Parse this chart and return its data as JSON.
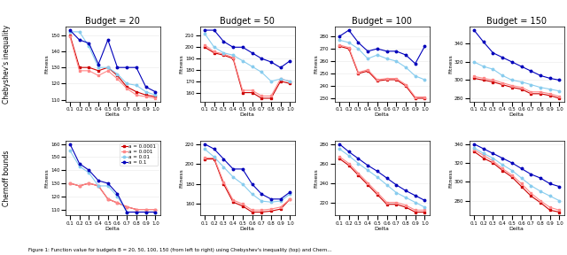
{
  "budgets": [
    20,
    50,
    100,
    150
  ],
  "delta": [
    0.1,
    0.2,
    0.3,
    0.4,
    0.5,
    0.6,
    0.7,
    0.8,
    0.9,
    1.0
  ],
  "alpha_labels": [
    "α = 0.0001",
    "α = 0.001",
    "α = 0.01",
    "α = 0.1"
  ],
  "legend_labels": [
    "a = 0.0001",
    "a = 0.001",
    "a = 0.01",
    "a = 0.1"
  ],
  "colors": [
    "#cc0000",
    "#ff8888",
    "#88ccee",
    "#0000bb"
  ],
  "row_labels": [
    "Chebyshev's inequality",
    "Chernoff bounds"
  ],
  "xlabel": "Delta",
  "ylabel": "Fitness",
  "title_fontsize": 7,
  "label_fontsize": 4.5,
  "tick_fontsize": 4,
  "legend_fontsize": 4,
  "chebyshev": {
    "b20": [
      [
        150,
        130,
        130,
        128,
        130,
        125,
        118,
        115,
        113,
        112
      ],
      [
        149,
        128,
        128,
        125,
        128,
        123,
        117,
        113,
        112,
        111
      ],
      [
        152,
        152,
        143,
        130,
        130,
        126,
        120,
        119,
        115,
        113
      ],
      [
        153,
        147,
        145,
        132,
        147,
        130,
        130,
        130,
        118,
        115
      ]
    ],
    "b50": [
      [
        200,
        195,
        193,
        190,
        160,
        160,
        155,
        155,
        170,
        168
      ],
      [
        202,
        196,
        194,
        191,
        162,
        162,
        157,
        157,
        172,
        170
      ],
      [
        212,
        200,
        195,
        193,
        188,
        183,
        178,
        170,
        172,
        170
      ],
      [
        215,
        215,
        205,
        200,
        200,
        195,
        190,
        187,
        182,
        188
      ]
    ],
    "b100": [
      [
        272,
        270,
        250,
        252,
        244,
        245,
        245,
        240,
        230,
        230
      ],
      [
        273,
        271,
        251,
        253,
        245,
        246,
        246,
        241,
        231,
        231
      ],
      [
        277,
        275,
        270,
        262,
        265,
        262,
        260,
        255,
        248,
        245
      ],
      [
        280,
        285,
        275,
        268,
        270,
        268,
        268,
        265,
        258,
        272
      ]
    ],
    "b150": [
      [
        302,
        300,
        298,
        295,
        292,
        290,
        285,
        285,
        283,
        280
      ],
      [
        304,
        302,
        300,
        297,
        294,
        292,
        287,
        287,
        285,
        282
      ],
      [
        320,
        315,
        312,
        305,
        300,
        298,
        295,
        292,
        290,
        288
      ],
      [
        355,
        342,
        330,
        325,
        320,
        315,
        310,
        305,
        302,
        300
      ]
    ]
  },
  "chernoff": {
    "b20": [
      [
        130,
        128,
        130,
        128,
        118,
        115,
        112,
        110,
        110,
        110
      ],
      [
        130,
        128,
        130,
        128,
        118,
        115,
        112,
        110,
        110,
        110
      ],
      [
        155,
        143,
        138,
        128,
        128,
        120,
        108,
        108,
        108,
        108
      ],
      [
        160,
        145,
        140,
        132,
        130,
        122,
        108,
        108,
        108,
        108
      ]
    ],
    "b50": [
      [
        205,
        205,
        180,
        162,
        158,
        152,
        152,
        153,
        155,
        165
      ],
      [
        206,
        206,
        182,
        164,
        160,
        154,
        154,
        155,
        157,
        165
      ],
      [
        215,
        207,
        197,
        187,
        180,
        170,
        163,
        162,
        163,
        170
      ],
      [
        220,
        215,
        205,
        195,
        195,
        180,
        170,
        165,
        165,
        172
      ]
    ],
    "b100": [
      [
        265,
        258,
        248,
        238,
        228,
        218,
        218,
        215,
        210,
        210
      ],
      [
        267,
        260,
        250,
        240,
        230,
        220,
        220,
        217,
        212,
        212
      ],
      [
        275,
        268,
        260,
        253,
        246,
        238,
        230,
        225,
        220,
        215
      ],
      [
        280,
        272,
        265,
        258,
        252,
        245,
        238,
        232,
        227,
        222
      ]
    ],
    "b150": [
      [
        332,
        325,
        320,
        312,
        305,
        295,
        285,
        278,
        270,
        268
      ],
      [
        334,
        328,
        322,
        314,
        307,
        298,
        288,
        280,
        273,
        270
      ],
      [
        336,
        330,
        325,
        318,
        312,
        304,
        296,
        290,
        285,
        280
      ],
      [
        340,
        335,
        330,
        325,
        320,
        314,
        308,
        304,
        298,
        295
      ]
    ]
  }
}
